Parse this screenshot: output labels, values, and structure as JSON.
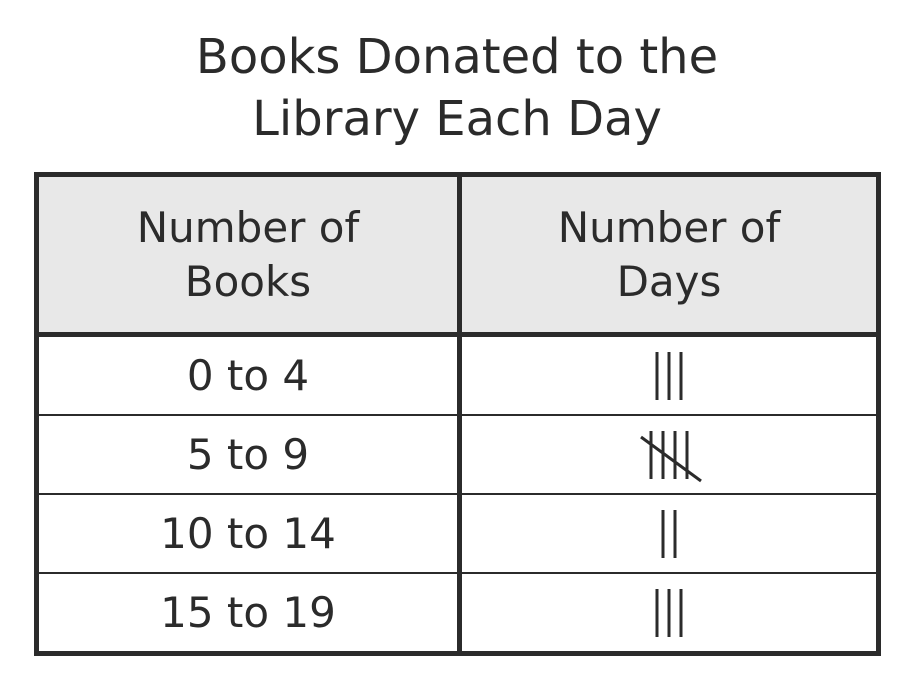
{
  "title": {
    "line1": "Books Donated to the",
    "line2": "Library Each Day"
  },
  "table": {
    "headers": [
      {
        "line1": "Number of",
        "line2": "Books"
      },
      {
        "line1": "Number of",
        "line2": "Days"
      }
    ],
    "rows": [
      {
        "books": "0 to 4",
        "tally": 3
      },
      {
        "books": "5 to 9",
        "tally": 5
      },
      {
        "books": "10 to 14",
        "tally": 2
      },
      {
        "books": "15 to 19",
        "tally": 3
      }
    ]
  }
}
